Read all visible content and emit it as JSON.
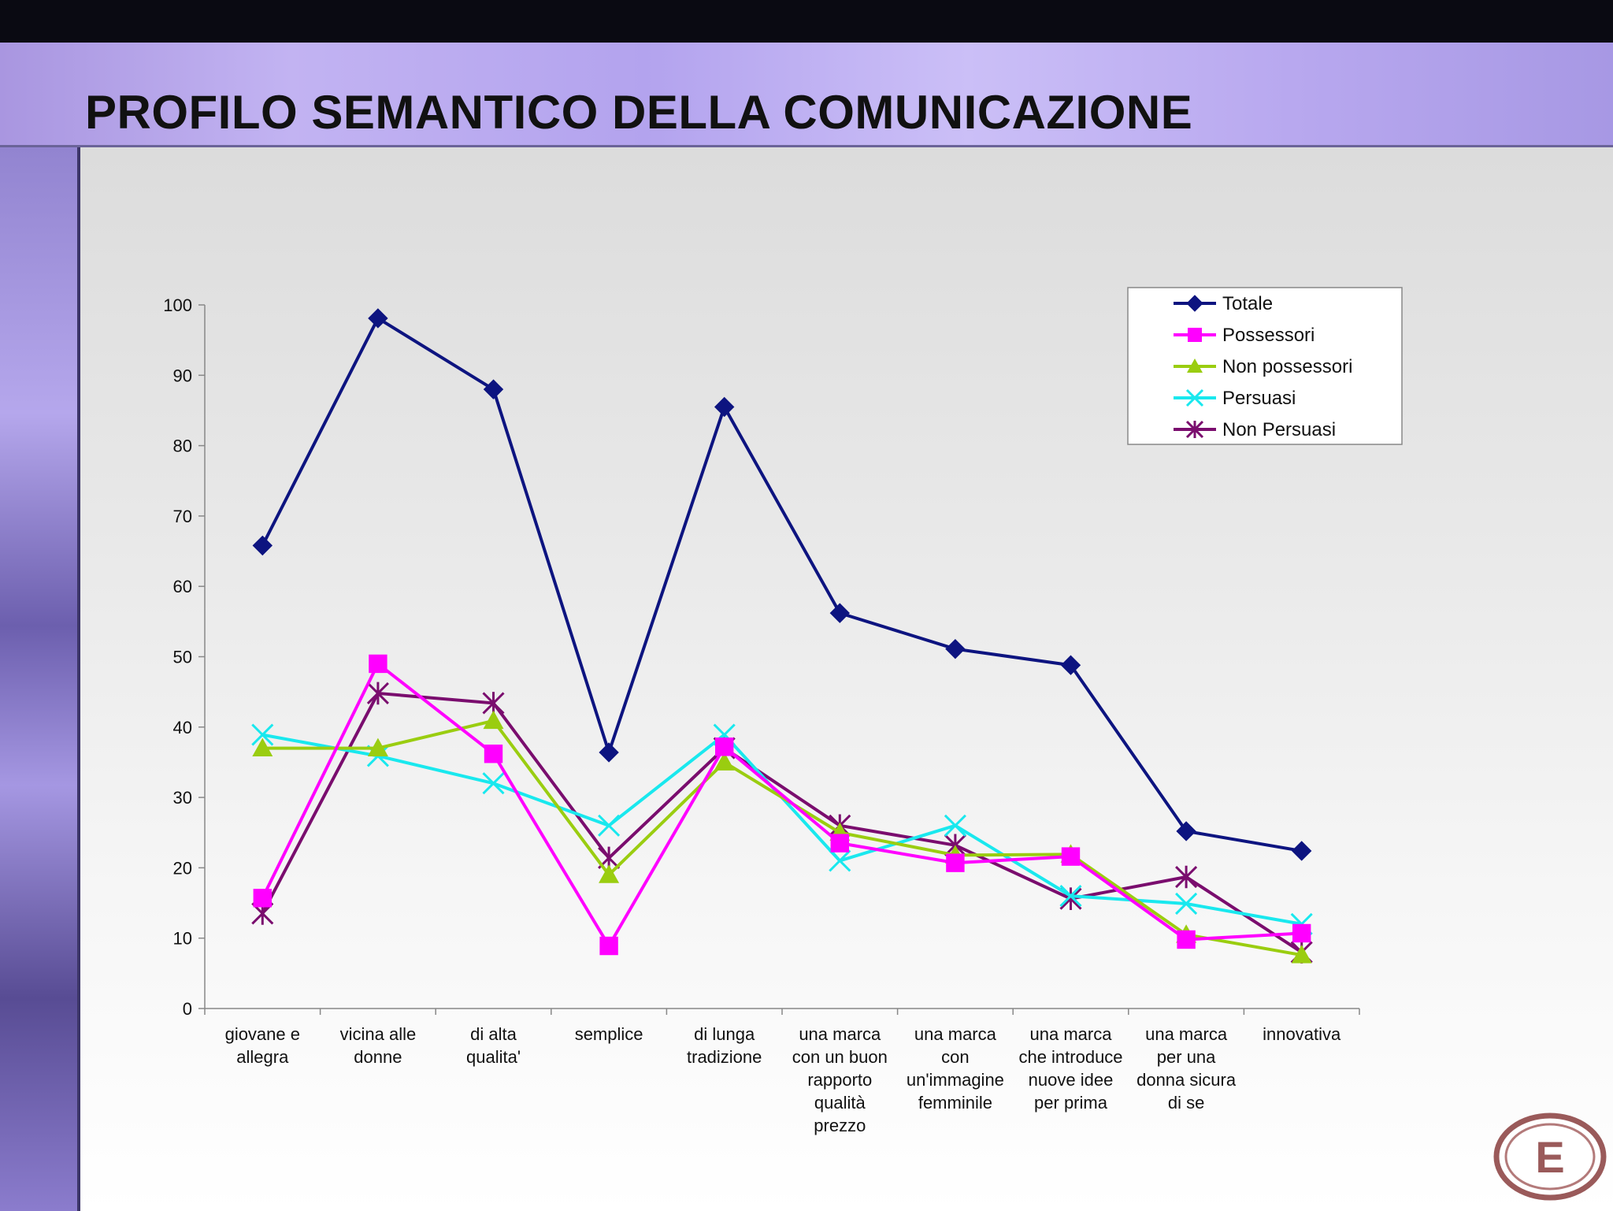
{
  "title": "PROFILO SEMANTICO DELLA COMUNICAZIONE",
  "logo": {
    "letter": "E",
    "color": "#9a5a5a"
  },
  "chart_data": {
    "type": "line",
    "title": "",
    "xlabel": "",
    "ylabel": "",
    "ylim": [
      0,
      100
    ],
    "yticks": [
      0,
      10,
      20,
      30,
      40,
      50,
      60,
      70,
      80,
      90,
      100
    ],
    "grid": false,
    "legend_position": "top-right",
    "categories": [
      [
        "giovane e",
        "allegra"
      ],
      [
        "vicina alle",
        "donne"
      ],
      [
        "di alta",
        "qualita'"
      ],
      [
        "semplice"
      ],
      [
        "di  lunga",
        "tradizione"
      ],
      [
        "una marca",
        "con un buon",
        "rapporto",
        "qualità",
        "prezzo"
      ],
      [
        "una marca",
        "con",
        "un'immagine",
        "femminile"
      ],
      [
        "una marca",
        "che introduce",
        "nuove idee",
        "per prima"
      ],
      [
        "una marca",
        "per una",
        "donna sicura",
        "di se"
      ],
      [
        "innovativa"
      ]
    ],
    "series": [
      {
        "name": "Totale",
        "color": "#0d1480",
        "marker": "diamond",
        "values": [
          65.8,
          98.1,
          88.0,
          36.4,
          85.5,
          56.2,
          51.1,
          48.8,
          25.2,
          22.4
        ]
      },
      {
        "name": "Possessori",
        "color": "#ff00ff",
        "marker": "square",
        "values": [
          15.7,
          49.0,
          36.2,
          8.9,
          37.2,
          23.5,
          20.7,
          21.6,
          9.8,
          10.7
        ]
      },
      {
        "name": "Non possessori",
        "color": "#9acd10",
        "marker": "triangle",
        "values": [
          37.0,
          37.0,
          40.9,
          19.0,
          35.0,
          25.0,
          21.8,
          21.9,
          10.5,
          7.6
        ]
      },
      {
        "name": "Persuasi",
        "color": "#19e8ee",
        "marker": "x",
        "values": [
          38.9,
          35.9,
          32.0,
          26.0,
          38.9,
          21.0,
          26.0,
          16.0,
          14.9,
          12.0
        ]
      },
      {
        "name": "Non Persuasi",
        "color": "#7a0d6e",
        "marker": "asterisk",
        "values": [
          13.5,
          44.8,
          43.4,
          21.4,
          37.0,
          26.0,
          23.2,
          15.6,
          18.7,
          8.0
        ]
      }
    ]
  }
}
